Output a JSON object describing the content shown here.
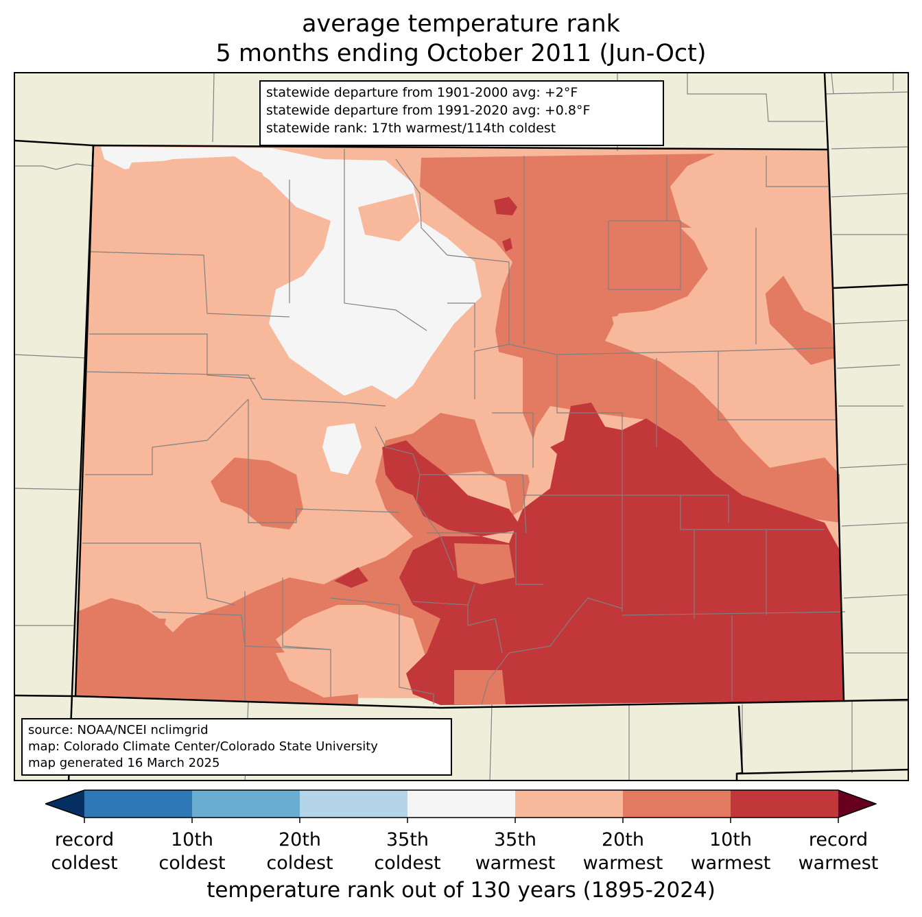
{
  "title": {
    "line1": "average temperature rank",
    "line2": "5 months ending October 2011 (Jun-Oct)"
  },
  "stats": {
    "line1": "statewide departure from 1901-2000 avg: +2°F",
    "line2": "statewide departure from 1991-2020 avg: +0.8°F",
    "line3": "statewide rank: 17th warmest/114th coldest"
  },
  "credits": {
    "line1": "source: NOAA/NCEI nclimgrid",
    "line2": "map: Colorado Climate Center/Colorado State University",
    "line3": "map generated 16 March 2025"
  },
  "colors": {
    "background": "#efeedb",
    "record_coldest": "#053061",
    "coldest_10": "#2e79b5",
    "coldest_20": "#6bacd1",
    "coldest_35": "#b3d5e7",
    "near_normal": "#f5f5f5",
    "warmest_35": "#f7b89c",
    "warmest_20": "#e27b62",
    "warmest_10": "#c1373a",
    "record_warmest": "#67001f",
    "county_lines": "#808080",
    "state_lines": "#000000"
  },
  "legend": {
    "ticks": [
      {
        "line1": "record",
        "line2": "coldest"
      },
      {
        "line1": "10th",
        "line2": "coldest"
      },
      {
        "line1": "20th",
        "line2": "coldest"
      },
      {
        "line1": "35th",
        "line2": "coldest"
      },
      {
        "line1": "35th",
        "line2": "warmest"
      },
      {
        "line1": "20th",
        "line2": "warmest"
      },
      {
        "line1": "10th",
        "line2": "warmest"
      },
      {
        "line1": "record",
        "line2": "warmest"
      }
    ],
    "xlabel": "temperature rank out of 130 years (1895-2024)"
  }
}
